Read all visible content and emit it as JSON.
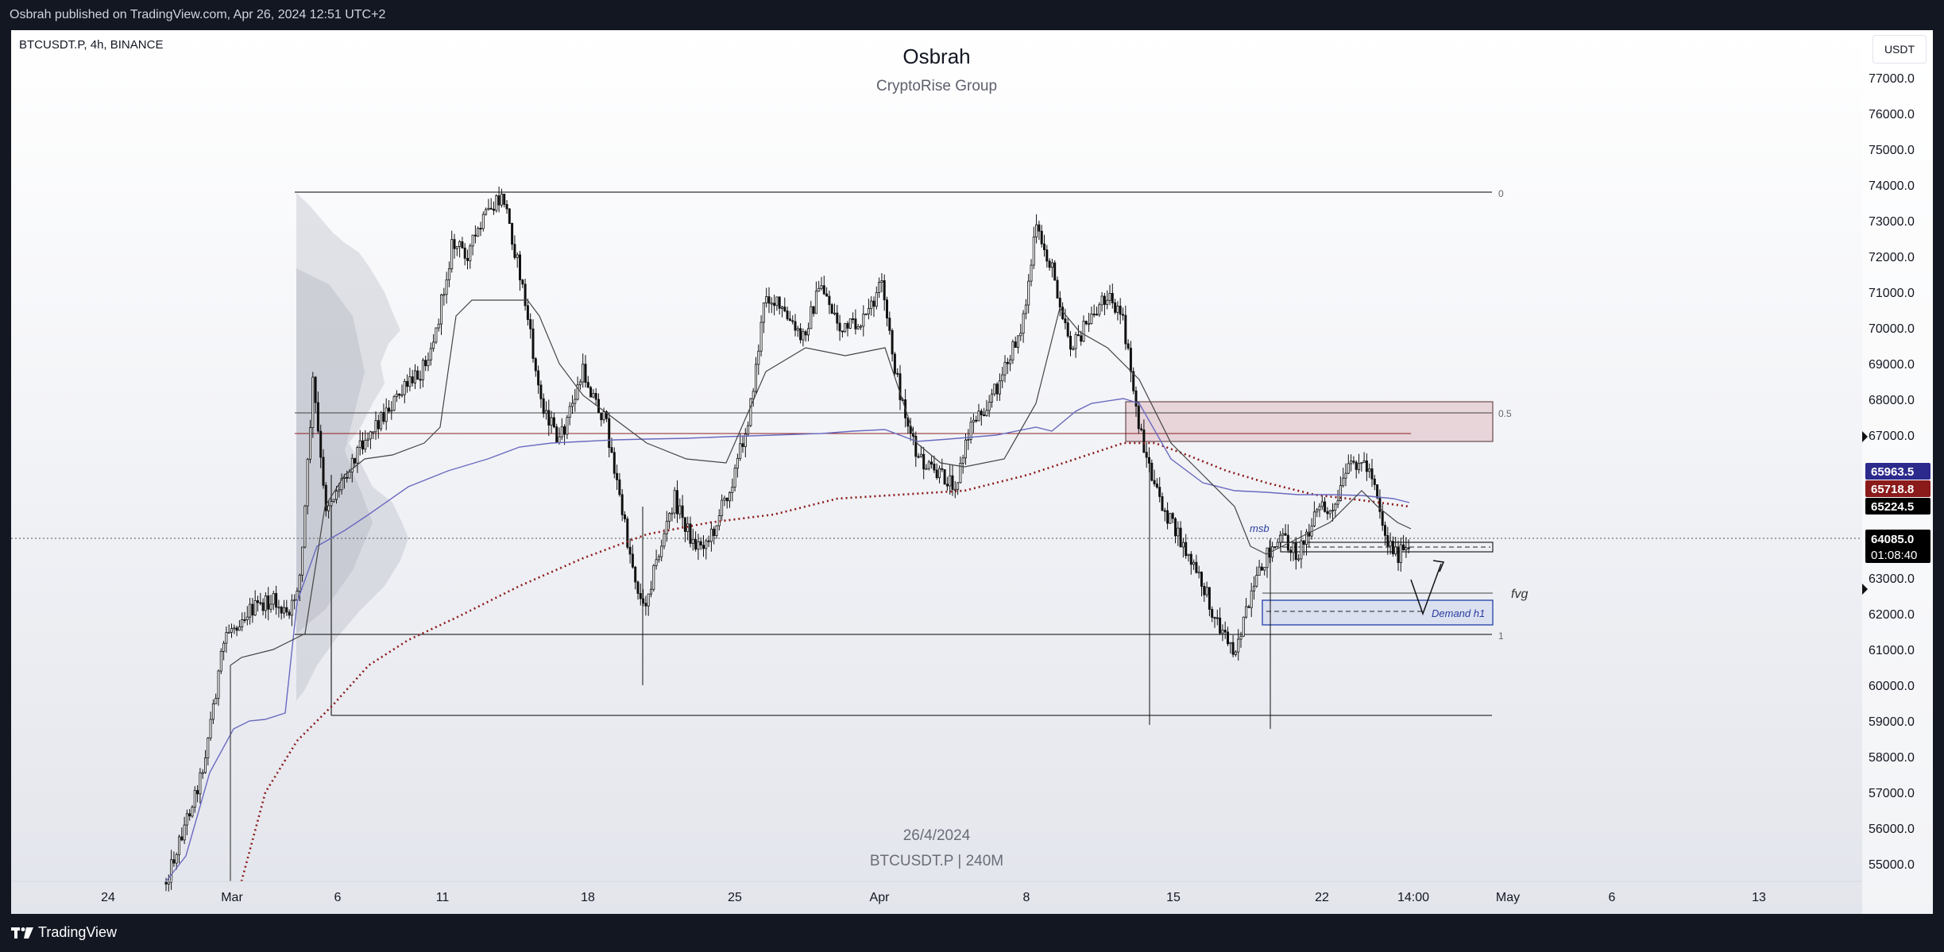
{
  "header": {
    "published_text": "Osbrah published on TradingView.com, Apr 26, 2024 12:51 UTC+2"
  },
  "chart": {
    "symbol_label": "BTCUSDT.P, 4h, BINANCE",
    "title": "Osbrah",
    "subtitle": "CryptoRise Group",
    "currency": "USDT",
    "watermark_date": "26/4/2024",
    "watermark_symbol": "BTCUSDT.P | 240M",
    "price_axis_labels": [
      "77000.0",
      "76000.0",
      "75000.0",
      "74000.0",
      "73000.0",
      "72000.0",
      "71000.0",
      "70000.0",
      "69000.0",
      "68000.0",
      "67000.0",
      "66000.0",
      "65000.0",
      "64000.0",
      "63000.0",
      "62000.0",
      "61000.0",
      "60000.0",
      "59000.0",
      "58000.0",
      "57000.0",
      "56000.0",
      "55000.0"
    ],
    "time_axis_labels": [
      "24",
      "Mar",
      "6",
      "11",
      "18",
      "25",
      "Apr",
      "8",
      "15",
      "22",
      "14:00",
      "May",
      "6",
      "13"
    ],
    "price_tags": [
      {
        "value": "65963.5",
        "color": "#2c2a8c"
      },
      {
        "value": "65718.8",
        "color": "#8b1a1a"
      },
      {
        "value": "65224.5",
        "color": "#000000"
      }
    ],
    "current_price": {
      "value": "64085.0",
      "countdown": "01:08:40"
    },
    "fib_labels": [
      "0",
      "0.5",
      "1"
    ],
    "annotations": {
      "msb": "msb",
      "fvg": "fvg",
      "demand": "Demand h1"
    }
  },
  "footer": {
    "logo_text": "TradingView"
  }
}
